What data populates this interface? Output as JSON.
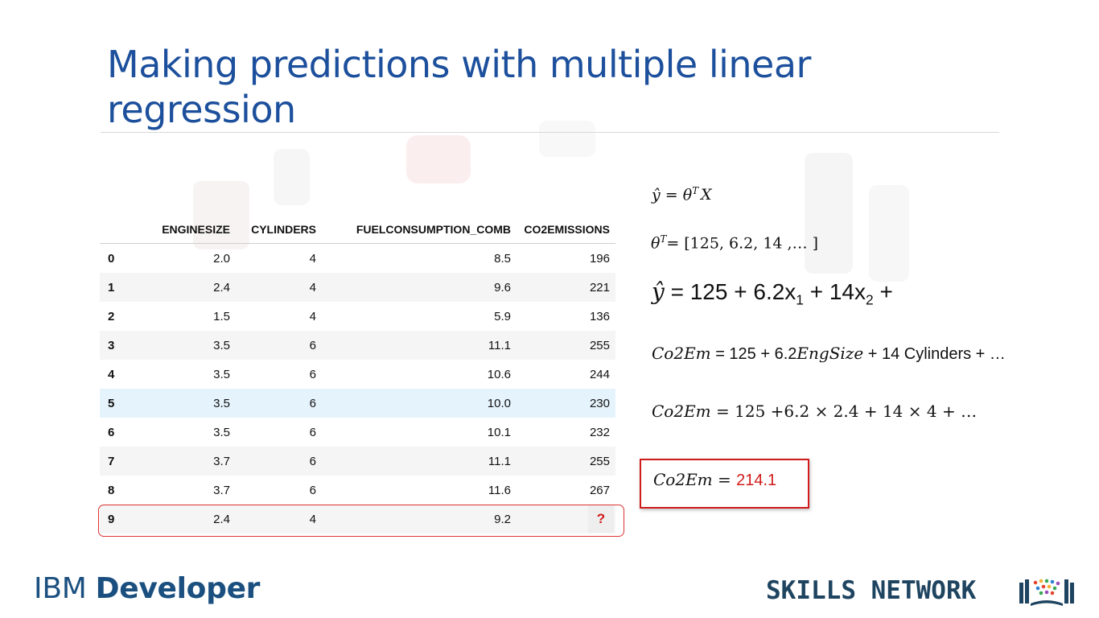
{
  "title": "Making predictions with multiple linear regression",
  "table": {
    "columns": [
      "",
      "ENGINESIZE",
      "CYLINDERS",
      "FUELCONSUMPTION_COMB",
      "CO2EMISSIONS"
    ],
    "rows": [
      {
        "idx": "0",
        "enginesize": "2.0",
        "cylinders": "4",
        "fuel": "8.5",
        "co2": "196"
      },
      {
        "idx": "1",
        "enginesize": "2.4",
        "cylinders": "4",
        "fuel": "9.6",
        "co2": "221"
      },
      {
        "idx": "2",
        "enginesize": "1.5",
        "cylinders": "4",
        "fuel": "5.9",
        "co2": "136"
      },
      {
        "idx": "3",
        "enginesize": "3.5",
        "cylinders": "6",
        "fuel": "11.1",
        "co2": "255"
      },
      {
        "idx": "4",
        "enginesize": "3.5",
        "cylinders": "6",
        "fuel": "10.6",
        "co2": "244"
      },
      {
        "idx": "5",
        "enginesize": "3.5",
        "cylinders": "6",
        "fuel": "10.0",
        "co2": "230"
      },
      {
        "idx": "6",
        "enginesize": "3.5",
        "cylinders": "6",
        "fuel": "10.1",
        "co2": "232"
      },
      {
        "idx": "7",
        "enginesize": "3.7",
        "cylinders": "6",
        "fuel": "11.1",
        "co2": "255"
      },
      {
        "idx": "8",
        "enginesize": "3.7",
        "cylinders": "6",
        "fuel": "11.6",
        "co2": "267"
      },
      {
        "idx": "9",
        "enginesize": "2.4",
        "cylinders": "4",
        "fuel": "9.2",
        "co2": "?"
      }
    ],
    "highlighted_row": "5",
    "query_row": "9"
  },
  "equations": {
    "e1": {
      "lhs": "ŷ",
      "mid": " = θ",
      "sup": "T",
      "rhs": "X"
    },
    "e2": {
      "lhs": "θ",
      "sup": "T",
      "rhs": "= [125, 6.2, 14 ,… ]"
    },
    "e3": {
      "lhs": "ŷ",
      "p1": " = 125 + 6.2x",
      "s1": "1",
      "p2": " + 14x",
      "s2": "2",
      "p3": " +"
    },
    "e4": {
      "lhs": "Co2Em",
      "p1": " = 125 + 6.2",
      "var": "EngSize",
      "p2": " + 14 Cylinders + …"
    },
    "e5": {
      "lhs": "Co2Em",
      "p1": " = 125 +6.2 × 2.4 + 14 × 4 + …"
    },
    "e6": {
      "lhs": "Co2Em",
      "eq": " = ",
      "value": "214.1"
    }
  },
  "colors": {
    "title": "#1c4f9c",
    "accent_red": "#d11a1a",
    "highlight_row": "#e5f3fc"
  },
  "footer": {
    "ibm_prefix": "IBM",
    "ibm_suffix": "Developer",
    "skills": "SKILLS NETWORK",
    "skills_logo_icon": "books-icon"
  }
}
